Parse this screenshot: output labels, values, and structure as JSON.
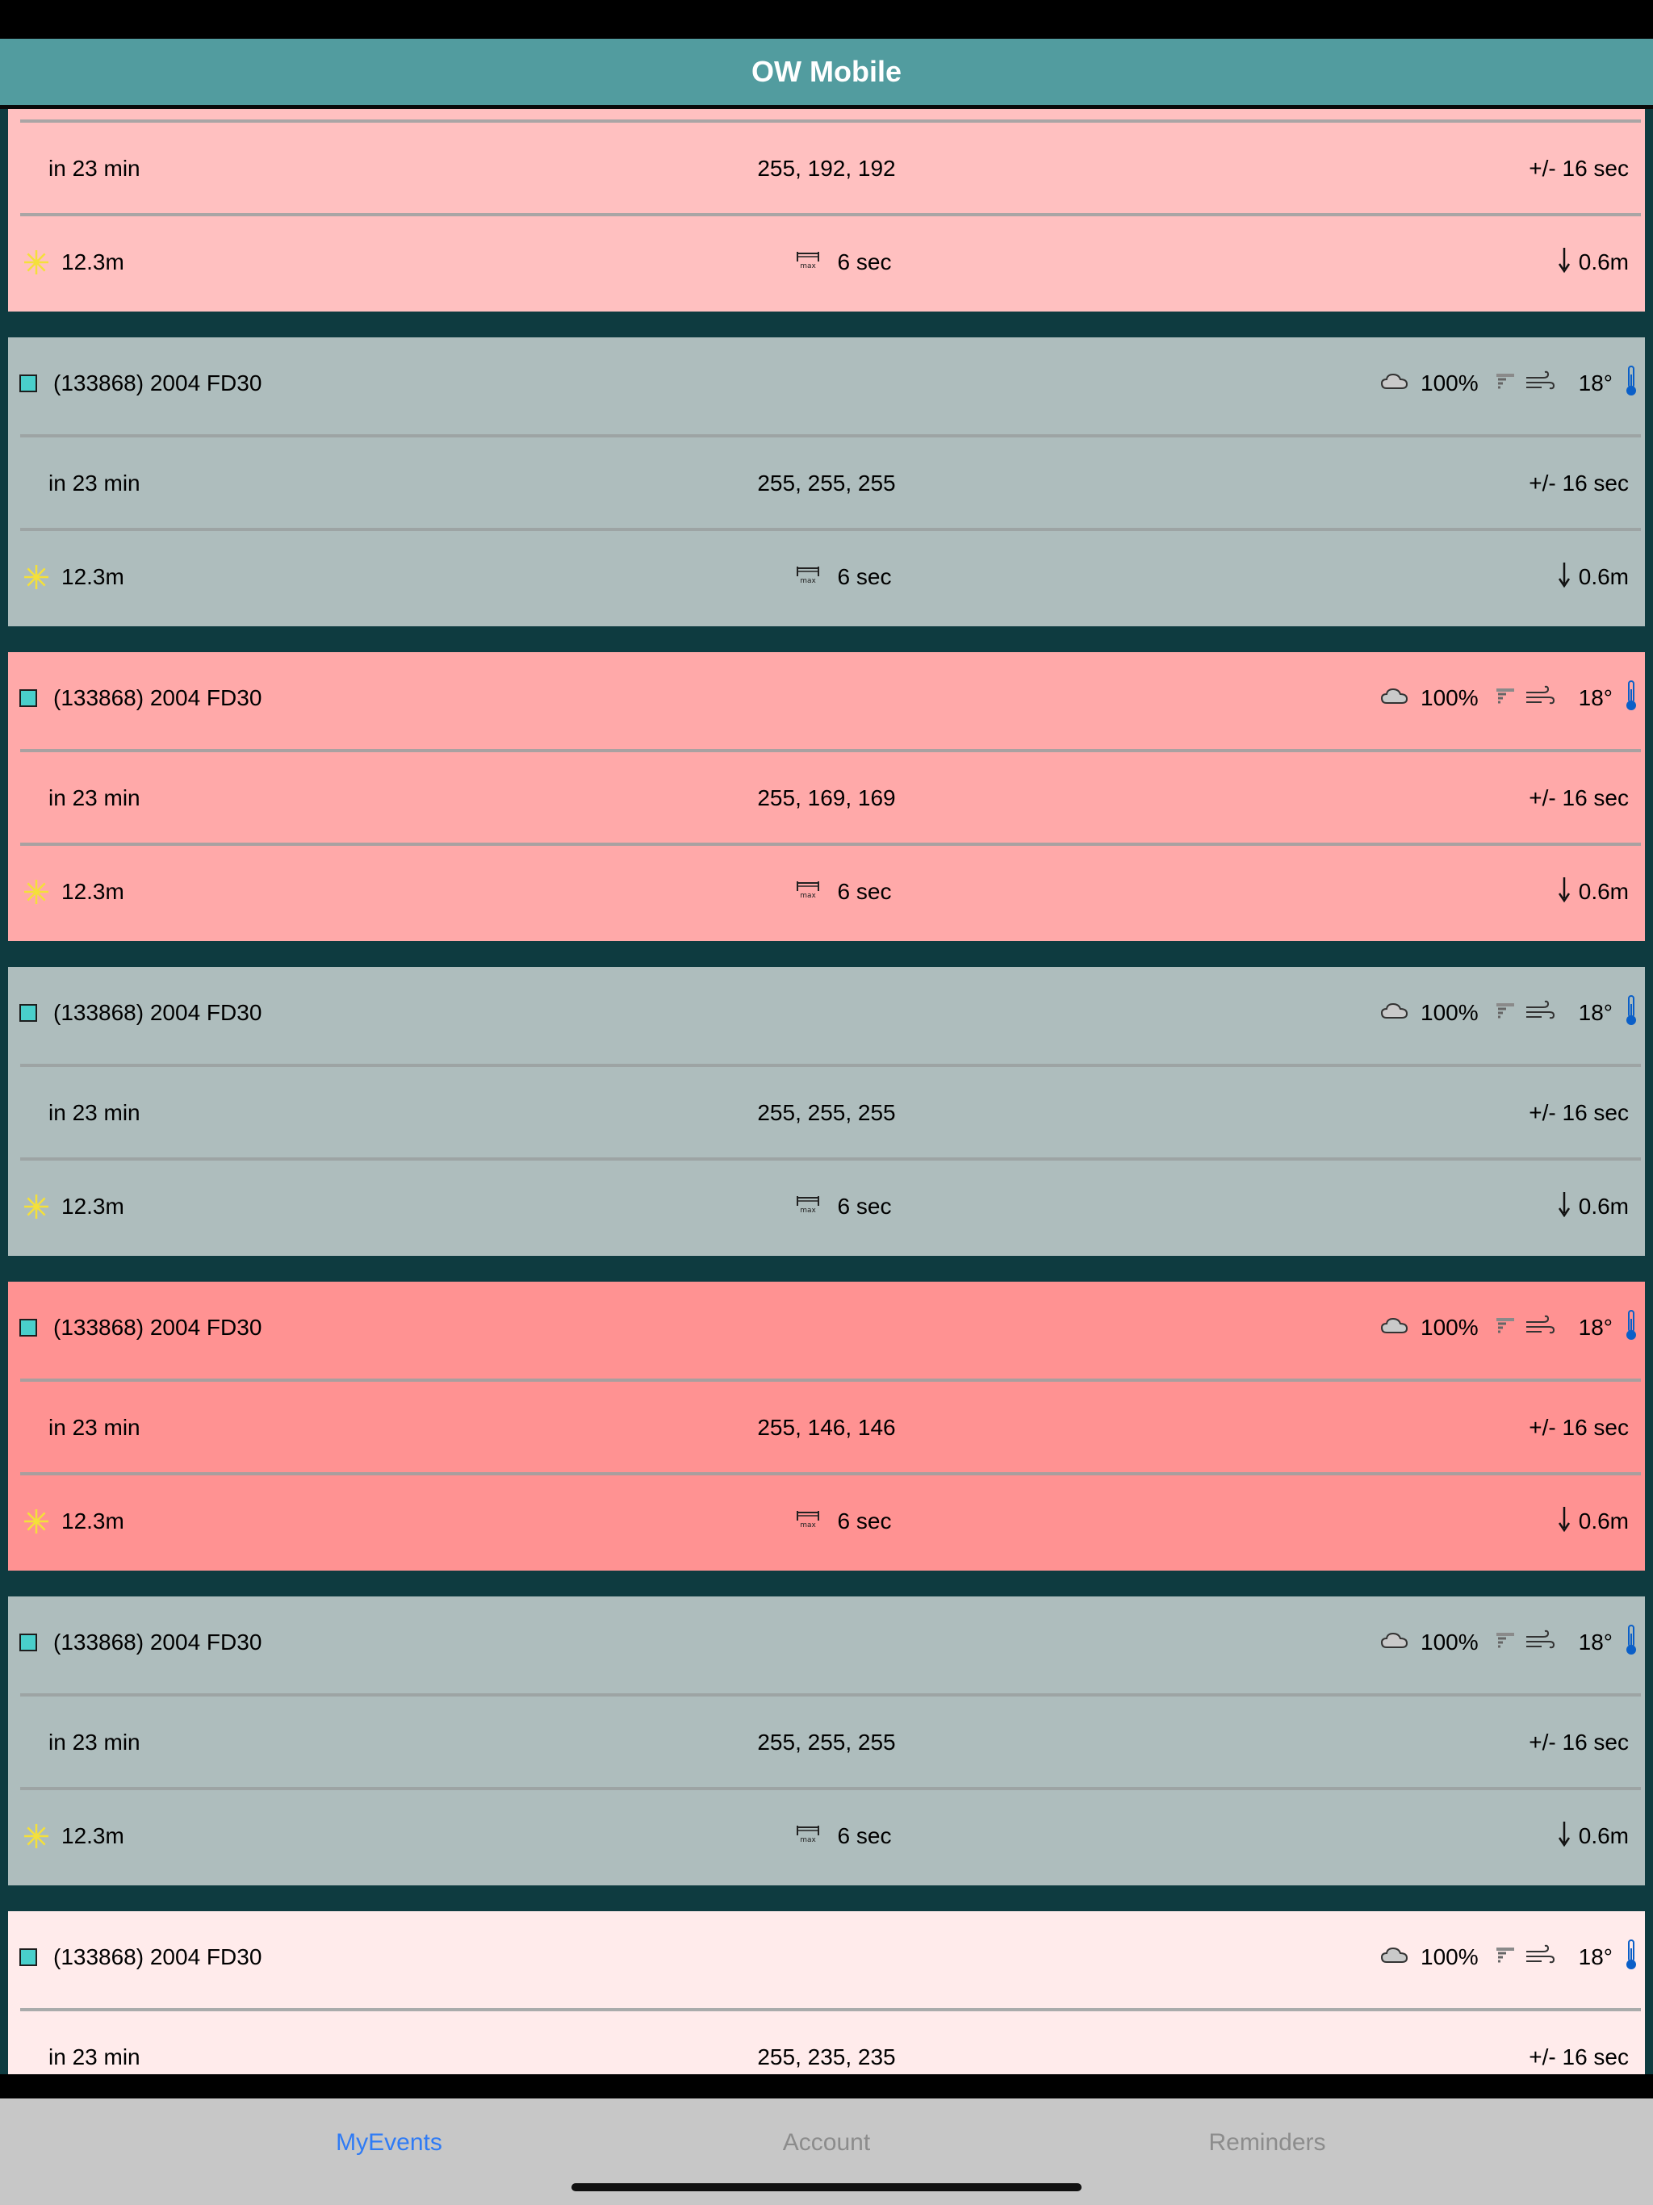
{
  "app": {
    "title": "OW Mobile"
  },
  "events": [
    {
      "bg": "#ffc0c0",
      "partial_top": true,
      "name": "",
      "cloud": "",
      "temp": "",
      "time": "in 23 min",
      "color_text": "255, 192, 192",
      "uncert": "+/- 16 sec",
      "mag": "12.3m",
      "duration": "6 sec",
      "drop": "0.6m"
    },
    {
      "bg": "#aebdbd",
      "name": "(133868) 2004 FD30",
      "cloud": "100%",
      "temp": "18°",
      "time": "in 23 min",
      "color_text": "255, 255, 255",
      "uncert": "+/- 16 sec",
      "mag": "12.3m",
      "duration": "6 sec",
      "drop": "0.6m"
    },
    {
      "bg": "#ffa9a9",
      "name": "(133868) 2004 FD30",
      "cloud": "100%",
      "temp": "18°",
      "time": "in 23 min",
      "color_text": "255, 169, 169",
      "uncert": "+/- 16 sec",
      "mag": "12.3m",
      "duration": "6 sec",
      "drop": "0.6m"
    },
    {
      "bg": "#aebdbd",
      "name": "(133868) 2004 FD30",
      "cloud": "100%",
      "temp": "18°",
      "time": "in 23 min",
      "color_text": "255, 255, 255",
      "uncert": "+/- 16 sec",
      "mag": "12.3m",
      "duration": "6 sec",
      "drop": "0.6m"
    },
    {
      "bg": "#ff9292",
      "name": "(133868) 2004 FD30",
      "cloud": "100%",
      "temp": "18°",
      "time": "in 23 min",
      "color_text": "255, 146, 146",
      "uncert": "+/- 16 sec",
      "mag": "12.3m",
      "duration": "6 sec",
      "drop": "0.6m"
    },
    {
      "bg": "#aebdbd",
      "name": "(133868) 2004 FD30",
      "cloud": "100%",
      "temp": "18°",
      "time": "in 23 min",
      "color_text": "255, 255, 255",
      "uncert": "+/- 16 sec",
      "mag": "12.3m",
      "duration": "6 sec",
      "drop": "0.6m"
    },
    {
      "bg": "#ffebeb",
      "name": "(133868) 2004 FD30",
      "cloud": "100%",
      "temp": "18°",
      "time": "in 23 min",
      "color_text": "255, 235, 235",
      "uncert": "+/- 16 sec",
      "mag": "12.3m",
      "duration": "6 sec",
      "drop": "0.6m"
    }
  ],
  "icons": {
    "checkbox": "checkbox-icon",
    "cloud": "cloud-icon",
    "rain": "rain-icon",
    "wind": "wind-icon",
    "thermometer": "thermometer-icon",
    "sun": "sun-icon",
    "duration": "max-duration-icon",
    "drop": "down-arrow-icon"
  },
  "colors": {
    "nav_bg": "#529c9f",
    "list_bg": "#0e3b40",
    "tab_active": "#2f7bf5",
    "tab_inactive": "#8c8c8c",
    "tabbar_bg": "#c7c7c7"
  },
  "tabs": [
    {
      "label": "MyEvents",
      "active": true
    },
    {
      "label": "Account",
      "active": false
    },
    {
      "label": "Reminders",
      "active": false
    }
  ]
}
